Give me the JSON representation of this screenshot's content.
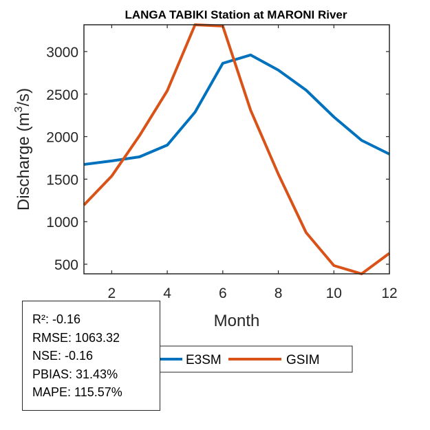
{
  "chart_data": {
    "type": "line",
    "title": "LANGA TABIKI  Station at  MARONI  River",
    "xlabel": "Month",
    "ylabel": "Discharge (m",
    "ylabel_superscript": "3",
    "ylabel_suffix": "/s)",
    "x": [
      1,
      2,
      3,
      4,
      5,
      6,
      7,
      8,
      9,
      10,
      11,
      12
    ],
    "xlim": [
      1,
      12
    ],
    "ylim": [
      387,
      3315
    ],
    "xticks": [
      2,
      4,
      6,
      8,
      10,
      12
    ],
    "yticks": [
      500,
      1000,
      1500,
      2000,
      2500,
      3000
    ],
    "grid": false,
    "legend_position": "bottom-center-outside",
    "series": [
      {
        "name": "E3SM",
        "color": "#0072BD",
        "values": [
          1673,
          1714,
          1762,
          1900,
          2288,
          2862,
          2960,
          2782,
          2547,
          2231,
          1956,
          1794
        ]
      },
      {
        "name": "GSIM",
        "color": "#D95319",
        "values": [
          1196,
          1536,
          2010,
          2539,
          3315,
          3300,
          2312,
          1560,
          872,
          484,
          387,
          629
        ]
      }
    ]
  },
  "stats": {
    "lines": [
      "R²: -0.16",
      "RMSE: 1063.32",
      "NSE: -0.16",
      "PBIAS: 31.43%",
      "MAPE: 115.57%"
    ]
  }
}
